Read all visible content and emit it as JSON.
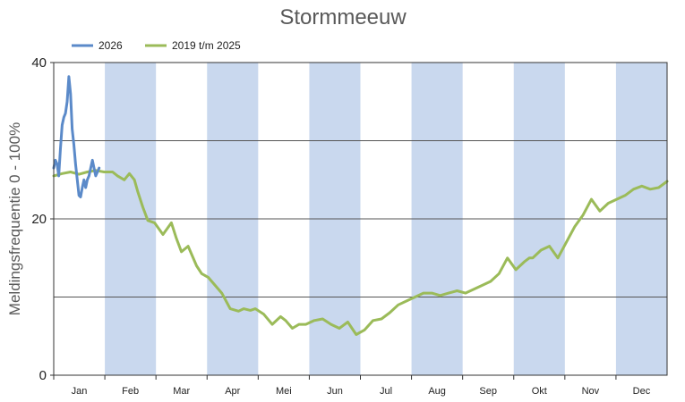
{
  "chart_data": {
    "type": "line",
    "title": "Stormmeeuw",
    "ylabel": "Meldingsfrequentie 0 - 100%",
    "xlabel": "",
    "ylim": [
      0,
      40
    ],
    "yticks": [
      0,
      20,
      40
    ],
    "grid_lines_y": [
      10,
      20,
      30
    ],
    "xlim": [
      0,
      365
    ],
    "months": [
      "Jan",
      "Feb",
      "Mar",
      "Apr",
      "Mei",
      "Jun",
      "Jul",
      "Aug",
      "Sep",
      "Okt",
      "Nov",
      "Dec"
    ],
    "shaded_months": [
      "Feb",
      "Apr",
      "Jun",
      "Aug",
      "Okt",
      "Dec"
    ],
    "shade_color": "#c9d8ee",
    "legend_position": "top-left",
    "series": [
      {
        "name": "2026",
        "color": "#5b8ac9",
        "x": [
          0,
          1,
          2,
          3,
          4,
          5,
          6,
          7,
          8,
          9,
          10,
          11,
          12,
          13,
          14,
          15,
          16,
          17,
          18,
          19,
          20,
          21,
          22,
          23,
          24,
          25,
          26,
          27
        ],
        "values": [
          26.5,
          27.5,
          27.0,
          25.5,
          29.0,
          32.0,
          33.0,
          33.5,
          35.0,
          38.2,
          36.0,
          31.5,
          29.5,
          27.0,
          25.0,
          23.0,
          22.8,
          24.0,
          25.0,
          24.0,
          25.0,
          25.5,
          26.5,
          27.5,
          26.5,
          25.5,
          26.0,
          26.5
        ]
      },
      {
        "name": "2019 t/m 2025",
        "color": "#9bbb59",
        "x": [
          0,
          5,
          10,
          15,
          20,
          25,
          30,
          35,
          38,
          42,
          45,
          48,
          50,
          53,
          56,
          60,
          65,
          70,
          73,
          76,
          80,
          85,
          88,
          92,
          96,
          100,
          105,
          110,
          113,
          117,
          120,
          125,
          130,
          135,
          138,
          142,
          146,
          150,
          155,
          160,
          165,
          170,
          175,
          180,
          185,
          190,
          195,
          200,
          205,
          210,
          215,
          220,
          225,
          230,
          235,
          240,
          245,
          250,
          255,
          260,
          265,
          270,
          275,
          280,
          283,
          285,
          290,
          295,
          300,
          305,
          310,
          315,
          320,
          325,
          330,
          335,
          340,
          345,
          350,
          355,
          360,
          365
        ],
        "values": [
          25.5,
          25.8,
          26.0,
          25.7,
          26.0,
          26.2,
          26.0,
          26.0,
          25.5,
          25.0,
          25.8,
          25.0,
          23.5,
          21.5,
          19.8,
          19.5,
          18.0,
          19.5,
          17.5,
          15.8,
          16.5,
          14.0,
          13.0,
          12.5,
          11.5,
          10.5,
          8.5,
          8.2,
          8.5,
          8.3,
          8.5,
          7.8,
          6.5,
          7.5,
          7.0,
          6.0,
          6.5,
          6.5,
          7.0,
          7.2,
          6.5,
          6.0,
          6.8,
          5.2,
          5.8,
          7.0,
          7.2,
          8.0,
          9.0,
          9.5,
          10.0,
          10.5,
          10.5,
          10.2,
          10.5,
          10.8,
          10.5,
          11.0,
          11.5,
          12.0,
          13.0,
          15.0,
          13.5,
          14.5,
          15.0,
          15.0,
          16.0,
          16.5,
          15.0,
          17.0,
          19.0,
          20.5,
          22.5,
          21.0,
          22.0,
          22.5,
          23.0,
          23.8,
          24.2,
          23.8,
          24.0,
          24.8
        ]
      }
    ]
  }
}
